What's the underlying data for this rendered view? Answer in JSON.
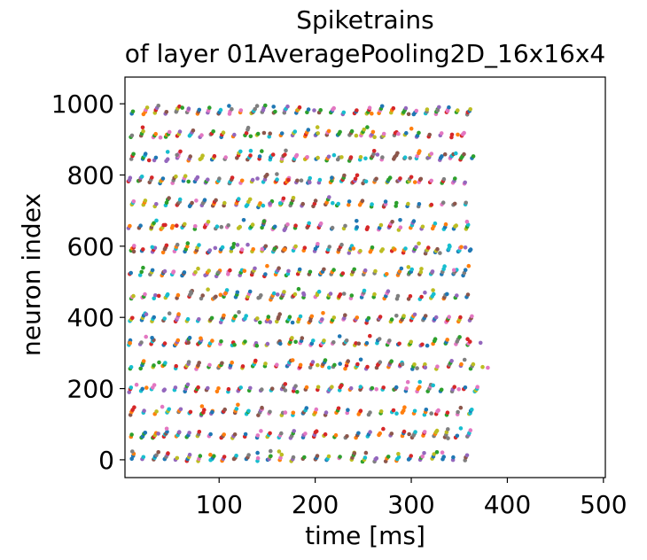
{
  "chart_data": {
    "type": "scatter",
    "title": "Spiketrains\nof layer 01AveragePooling2D_16x16x4",
    "title_lines": [
      "Spiketrains",
      "of layer 01AveragePooling2D_16x16x4"
    ],
    "xlabel": "time [ms]",
    "ylabel": "neuron index",
    "xlim": [
      2,
      502
    ],
    "ylim": [
      -50,
      1075
    ],
    "xticks": [
      100,
      200,
      300,
      400,
      500
    ],
    "yticks": [
      0,
      200,
      400,
      600,
      800,
      1000
    ],
    "xtick_labels": [
      "100",
      "200",
      "300",
      "400",
      "500"
    ],
    "ytick_labels": [
      "0",
      "200",
      "400",
      "600",
      "800",
      "1000"
    ],
    "grid": false,
    "legend": "none",
    "marker": "dot",
    "palette": [
      "#1f77b4",
      "#ff7f0e",
      "#2ca02c",
      "#d62728",
      "#9467bd",
      "#8c564b",
      "#e377c2",
      "#7f7f7f",
      "#bcbd22",
      "#17becf"
    ],
    "spike_pattern": {
      "band_centers": [
        10,
        75,
        140,
        205,
        270,
        335,
        400,
        465,
        530,
        595,
        660,
        725,
        790,
        855,
        920,
        985
      ],
      "band_half_height": 16,
      "time_start": 5,
      "time_step": 11.8,
      "time_end_min": 360,
      "time_end_max": 375,
      "seed": 12
    },
    "series": [
      {
        "name": "",
        "x": [
          5,
          17,
          28,
          40,
          52,
          64,
          76,
          88,
          100,
          111,
          123,
          135,
          147,
          159,
          170,
          182,
          194,
          206,
          218,
          229,
          241,
          253,
          265,
          277,
          288,
          300,
          312,
          324,
          336,
          347,
          359
        ],
        "y": [
          8,
          12,
          4,
          18,
          10,
          6,
          20,
          14,
          2,
          16,
          9,
          11,
          22,
          5,
          13,
          7,
          19,
          3,
          15,
          10,
          24,
          6,
          12,
          18,
          1,
          17,
          8,
          14,
          21,
          4,
          11
        ]
      },
      {
        "name": "",
        "x": [
          5,
          17,
          28,
          40,
          52,
          64,
          76,
          88,
          100,
          111,
          123,
          135,
          147,
          159,
          170,
          182,
          194,
          206,
          218,
          229,
          241,
          253,
          265,
          277,
          288,
          300,
          312,
          324,
          336,
          347,
          359,
          371
        ],
        "y": [
          72,
          78,
          66,
          84,
          70,
          80,
          62,
          88,
          74,
          68,
          82,
          76,
          64,
          86,
          71,
          79,
          67,
          83,
          75,
          61,
          87,
          73,
          69,
          81,
          77,
          65,
          85,
          72,
          78,
          66,
          84,
          70
        ]
      }
    ]
  }
}
